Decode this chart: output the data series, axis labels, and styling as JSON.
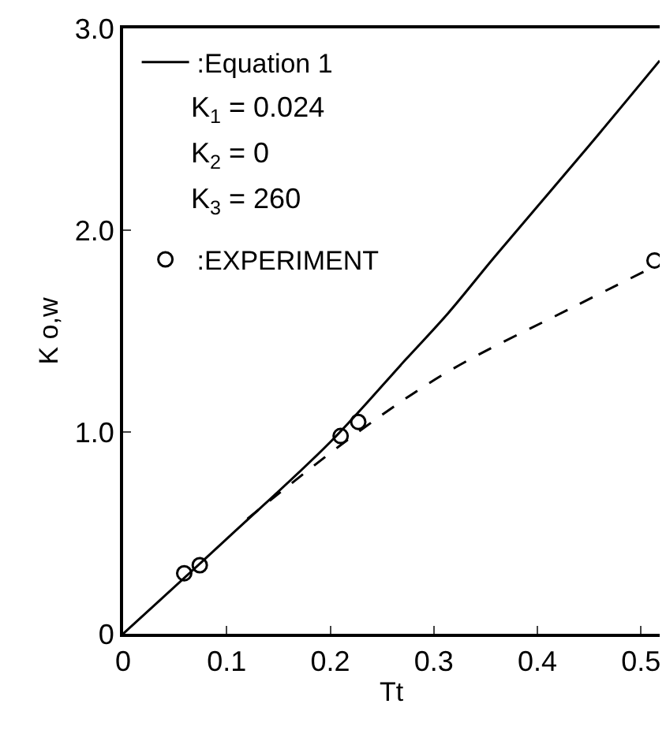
{
  "chart_data": {
    "type": "line",
    "xlabel": "Tt",
    "ylabel": "K o,w",
    "series": [
      {
        "name": ":Equation 1",
        "color": "#000000",
        "line_style": "solid",
        "marker": "none",
        "x": [
          0,
          0.1,
          0.2,
          0.273,
          0.314,
          0.359,
          0.45,
          0.518
        ],
        "values": [
          0,
          0.47,
          0.95,
          1.36,
          1.59,
          1.87,
          2.42,
          2.84
        ]
      },
      {
        "color": "#000000",
        "line_style": "dashed",
        "marker": "none",
        "x": [
          0.12,
          0.227,
          0.314,
          0.435,
          0.505
        ],
        "values": [
          0.57,
          1.0,
          1.3,
          1.62,
          1.8
        ]
      },
      {
        "name": ":EXPERIMENT",
        "type": "scatter",
        "color": "#000000",
        "marker": "circle",
        "x": [
          0.059,
          0.074,
          0.21,
          0.227,
          0.513
        ],
        "values": [
          0.3,
          0.34,
          0.98,
          1.05,
          1.85
        ]
      }
    ],
    "annotations": [
      "K$_{1}$ = 0.024",
      "K$_{2}$ = 0",
      "K$_{3}$ = 260"
    ],
    "xlim": [
      0,
      0.518
    ],
    "xticks": [
      0,
      0.1,
      0.2,
      0.3,
      0.4,
      0.5
    ],
    "ylim": [
      0,
      3.0
    ],
    "yticks": [
      {
        "value": 0,
        "label": "0"
      },
      {
        "value": 1,
        "label": "1.0"
      },
      {
        "value": 2,
        "label": "2.0"
      },
      {
        "value": 3,
        "label": "3.0"
      }
    ],
    "legend": "top left"
  }
}
